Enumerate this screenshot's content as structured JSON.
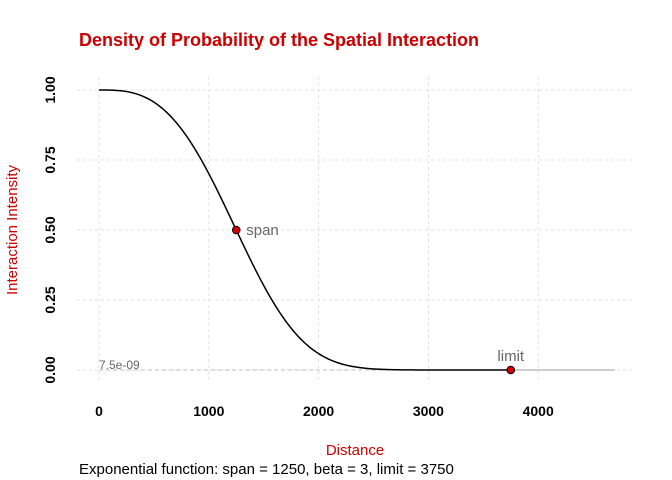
{
  "chart_data": {
    "type": "line",
    "title": "Density of Probability of the Spatial Interaction",
    "xlabel": "Distance",
    "ylabel": "Interaction Intensity",
    "caption": "Exponential function: span = 1250, beta = 3, limit = 3750",
    "function": "exponential",
    "parameters": {
      "span": 1250,
      "beta": 3,
      "limit": 3750
    },
    "xlim": [
      0,
      4700
    ],
    "ylim": [
      0,
      1
    ],
    "xticks": [
      0,
      1000,
      2000,
      3000,
      4000
    ],
    "xtick_labels": [
      "0",
      "1000",
      "2000",
      "3000",
      "4000"
    ],
    "yticks": [
      0,
      0.25,
      0.5,
      0.75,
      1
    ],
    "ytick_labels": [
      "0.00",
      "0.25",
      "0.50",
      "0.75",
      "1.00"
    ],
    "grid": true,
    "series": [
      {
        "x": [
          0,
          250,
          500,
          750,
          1000,
          1250,
          1500,
          1750,
          2000,
          2250,
          2500,
          2750,
          3000,
          3250,
          3500,
          3750
        ],
        "values": [
          1.0,
          0.994,
          0.957,
          0.864,
          0.701,
          0.5,
          0.301,
          0.144,
          0.052,
          0.0138,
          0.0026,
          0.00034,
          3e-05,
          2e-06,
          1e-07,
          7.5e-09
        ]
      }
    ],
    "tail": {
      "x": [
        3750,
        4700
      ],
      "y": [
        7.5e-09,
        7.5e-09
      ]
    },
    "points": [
      {
        "label": "span",
        "x": 1250,
        "y": 0.5
      },
      {
        "label": "limit",
        "x": 3750,
        "y": 7.5e-09
      }
    ],
    "min_value_label": "7.5e-09",
    "min_value": 7.5e-09,
    "colors": {
      "title": "#cc0000",
      "axis_label": "#cc0000",
      "curve": "#000000",
      "point": "#d40000",
      "tail": "#bdbdbd"
    }
  }
}
